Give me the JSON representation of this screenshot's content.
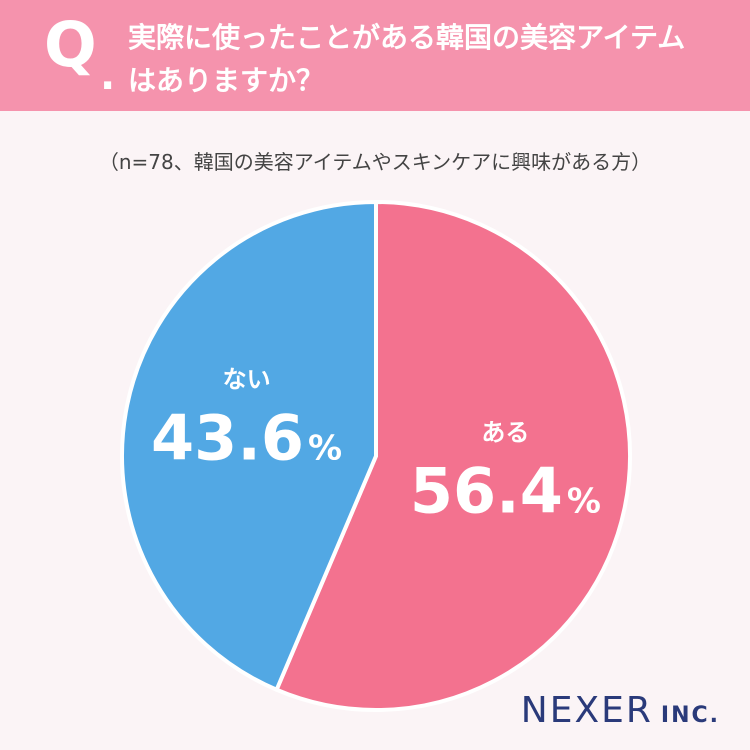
{
  "header": {
    "q_mark": "Q",
    "q_dot": ".",
    "question_line1": "実際に使ったことがある韓国の美容アイテム",
    "question_line2": "はありますか？"
  },
  "sample_note": "（n=78、韓国の美容アイテムやスキンケアに興味がある方）",
  "chart_data": {
    "type": "pie",
    "title": "",
    "start_angle_deg": 0,
    "direction": "clockwise",
    "slices": [
      {
        "label": "ある",
        "value": 56.4,
        "display": "56.4",
        "unit": "%",
        "color": "#f3728f"
      },
      {
        "label": "ない",
        "value": 43.6,
        "display": "43.6",
        "unit": "%",
        "color": "#52a8e4"
      }
    ]
  },
  "logo": {
    "main": "NEXER",
    "suffix": "INC."
  },
  "colors": {
    "header_bg": "#f593ad",
    "page_bg": "#fbf4f6",
    "logo": "#2a3a7a"
  }
}
